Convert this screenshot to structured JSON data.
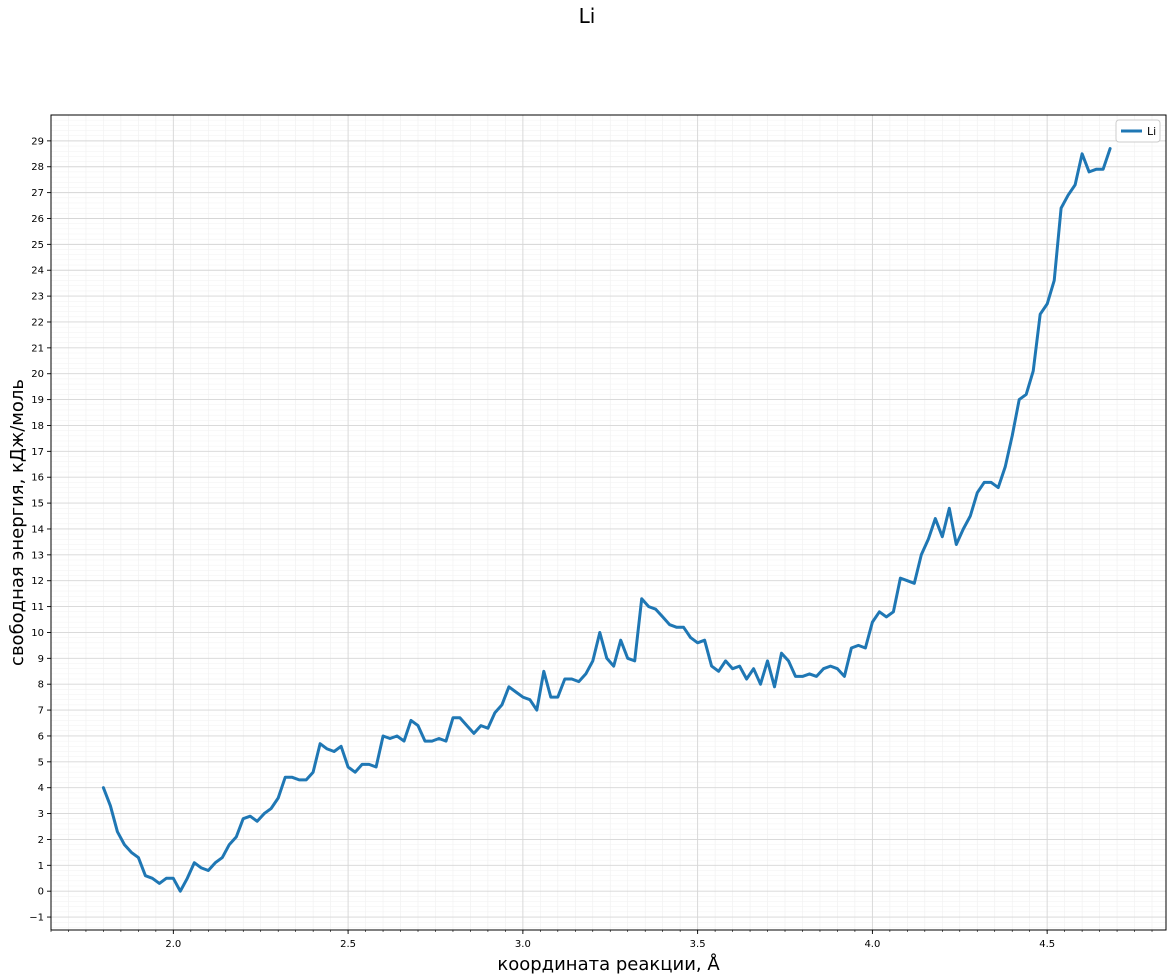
{
  "figure": {
    "title": "Li"
  },
  "chart_data": {
    "type": "line",
    "title": "Li",
    "xlabel": "координата реакции, Å",
    "ylabel": "свободная энергия, кДж/моль",
    "xlim": [
      1.65,
      4.84
    ],
    "ylim": [
      -1.5,
      30.0
    ],
    "x_ticks": [
      "2.0",
      "2.5",
      "3.0",
      "3.5",
      "4.0",
      "4.5"
    ],
    "y_ticks": [
      "−1",
      "0",
      "1",
      "2",
      "3",
      "4",
      "5",
      "6",
      "7",
      "8",
      "9",
      "10",
      "11",
      "12",
      "13",
      "14",
      "15",
      "16",
      "17",
      "18",
      "19",
      "20",
      "21",
      "22",
      "23",
      "24",
      "25",
      "26",
      "27",
      "28",
      "29"
    ],
    "grid": "major and minor",
    "legend": {
      "position": "top-right",
      "entries": [
        "Li"
      ]
    },
    "series": [
      {
        "name": "Li",
        "color": "#1f77b4",
        "x": [
          1.8,
          1.82,
          1.84,
          1.86,
          1.88,
          1.9,
          1.92,
          1.94,
          1.96,
          1.98,
          2.0,
          2.02,
          2.04,
          2.06,
          2.08,
          2.1,
          2.12,
          2.14,
          2.16,
          2.18,
          2.2,
          2.22,
          2.24,
          2.26,
          2.28,
          2.3,
          2.32,
          2.34,
          2.36,
          2.38,
          2.4,
          2.42,
          2.44,
          2.46,
          2.48,
          2.5,
          2.52,
          2.54,
          2.56,
          2.58,
          2.6,
          2.62,
          2.64,
          2.66,
          2.68,
          2.7,
          2.72,
          2.74,
          2.76,
          2.78,
          2.8,
          2.82,
          2.84,
          2.86,
          2.88,
          2.9,
          2.92,
          2.94,
          2.96,
          2.98,
          3.0,
          3.02,
          3.04,
          3.06,
          3.08,
          3.1,
          3.12,
          3.14,
          3.16,
          3.18,
          3.2,
          3.22,
          3.24,
          3.26,
          3.28,
          3.3,
          3.32,
          3.34,
          3.36,
          3.38,
          3.4,
          3.42,
          3.44,
          3.46,
          3.48,
          3.5,
          3.52,
          3.54,
          3.56,
          3.58,
          3.6,
          3.62,
          3.64,
          3.66,
          3.68,
          3.7,
          3.72,
          3.74,
          3.76,
          3.78,
          3.8,
          3.82,
          3.84,
          3.86,
          3.88,
          3.9,
          3.92,
          3.94,
          3.96,
          3.98,
          4.0,
          4.02,
          4.04,
          4.06,
          4.08,
          4.1,
          4.12,
          4.14,
          4.16,
          4.18,
          4.2,
          4.22,
          4.24,
          4.26,
          4.28,
          4.3,
          4.32,
          4.34,
          4.36,
          4.38,
          4.4,
          4.42,
          4.44,
          4.46,
          4.48,
          4.5,
          4.52,
          4.54,
          4.56,
          4.58,
          4.6,
          4.62,
          4.64,
          4.66,
          4.68
        ],
        "y": [
          4.0,
          3.3,
          2.3,
          1.8,
          1.5,
          1.3,
          0.6,
          0.5,
          0.3,
          0.5,
          0.5,
          0.0,
          0.5,
          1.1,
          0.9,
          0.8,
          1.1,
          1.3,
          1.8,
          2.1,
          2.8,
          2.9,
          2.7,
          3.0,
          3.2,
          3.6,
          4.4,
          4.4,
          4.3,
          4.3,
          4.6,
          5.7,
          5.5,
          5.4,
          5.6,
          4.8,
          4.6,
          4.9,
          4.9,
          4.8,
          6.0,
          5.9,
          6.0,
          5.8,
          6.6,
          6.4,
          5.8,
          5.8,
          5.9,
          5.8,
          6.7,
          6.7,
          6.4,
          6.1,
          6.4,
          6.3,
          6.9,
          7.2,
          7.9,
          7.7,
          7.5,
          7.4,
          7.0,
          8.5,
          7.5,
          7.5,
          8.2,
          8.2,
          8.1,
          8.4,
          8.9,
          10.0,
          9.0,
          8.7,
          9.7,
          9.0,
          8.9,
          11.3,
          11.0,
          10.9,
          10.6,
          10.3,
          10.2,
          10.2,
          9.8,
          9.6,
          9.7,
          8.7,
          8.5,
          8.9,
          8.6,
          8.7,
          8.2,
          8.6,
          8.0,
          8.9,
          7.9,
          9.2,
          8.9,
          8.3,
          8.3,
          8.4,
          8.3,
          8.6,
          8.7,
          8.6,
          8.3,
          9.4,
          9.5,
          9.4,
          10.4,
          10.8,
          10.6,
          10.8,
          12.1,
          12.0,
          11.9,
          13.0,
          13.6,
          14.4,
          13.7,
          14.8,
          13.4,
          14.0,
          14.5,
          15.4,
          15.8,
          15.8,
          15.6,
          16.4,
          17.6,
          19.0,
          19.2,
          20.1,
          22.3,
          22.7,
          23.6,
          26.4,
          26.9,
          27.3,
          28.5,
          27.8,
          27.9,
          27.9,
          28.7
        ]
      }
    ]
  }
}
